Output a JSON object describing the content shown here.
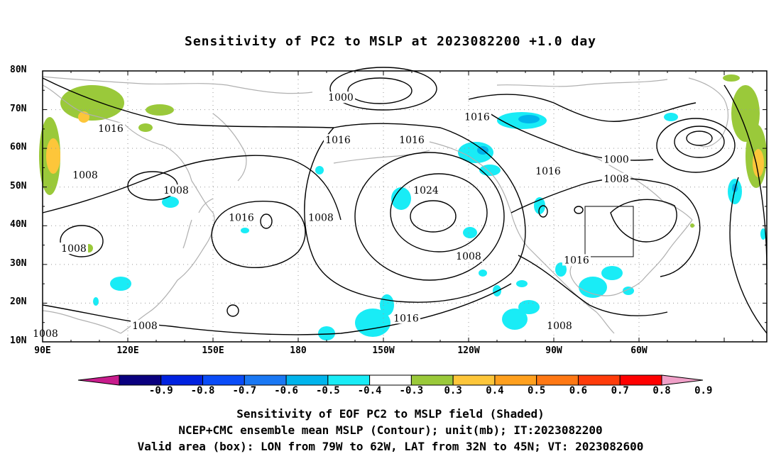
{
  "title": "Sensitivity of PC2 to MSLP at 2023082200 +1.0 day",
  "map": {
    "lat_labels": [
      "80N",
      "70N",
      "60N",
      "50N",
      "40N",
      "30N",
      "20N",
      "10N"
    ],
    "lon_labels": [
      "90E",
      "120E",
      "150E",
      "180",
      "150W",
      "120W",
      "90W",
      "60W"
    ],
    "contour_labels": [
      {
        "text": "1000",
        "lon": -165,
        "lat": 73
      },
      {
        "text": "1016",
        "lon": -82,
        "lat": 31
      },
      {
        "text": "1016",
        "lon": 114,
        "lat": 65
      },
      {
        "text": "1016",
        "lon": -166,
        "lat": 62
      },
      {
        "text": "1016",
        "lon": -140,
        "lat": 62
      },
      {
        "text": "1016",
        "lon": 160,
        "lat": 42
      },
      {
        "text": "1016",
        "lon": -117,
        "lat": 68
      },
      {
        "text": "1016",
        "lon": -92,
        "lat": 54
      },
      {
        "text": "1016",
        "lon": -142,
        "lat": 16
      },
      {
        "text": "1024",
        "lon": -135,
        "lat": 49
      },
      {
        "text": "1008",
        "lon": 105,
        "lat": 53
      },
      {
        "text": "1008",
        "lon": 137,
        "lat": 49
      },
      {
        "text": "1008",
        "lon": -172,
        "lat": 42
      },
      {
        "text": "1008",
        "lon": -120,
        "lat": 32
      },
      {
        "text": "1008",
        "lon": -88,
        "lat": 14
      },
      {
        "text": "1008",
        "lon": -68,
        "lat": 52
      },
      {
        "text": "1000",
        "lon": -68,
        "lat": 57
      },
      {
        "text": "1008",
        "lon": 91,
        "lat": 12
      },
      {
        "text": "1008",
        "lon": 126,
        "lat": 14
      },
      {
        "text": "1008",
        "lon": 101,
        "lat": 34
      }
    ],
    "valid_box": {
      "lon_min": -79,
      "lon_max": -62,
      "lat_min": 32,
      "lat_max": 45
    }
  },
  "colorbar": {
    "colors": [
      "#0a007f",
      "#0022e0",
      "#0a4cf8",
      "#1a78f4",
      "#00b4ec",
      "#19ecf6",
      "#ffffff",
      "#9ac93a",
      "#fdc63a",
      "#ffa01e",
      "#ff7814",
      "#ff3c0a",
      "#ff0000"
    ],
    "left_arrow_color": "#c81c8c",
    "right_arrow_color": "#f0a0c8",
    "labels": [
      "-0.9",
      "-0.8",
      "-0.7",
      "-0.6",
      "-0.5",
      "-0.4",
      "-0.3",
      "0.3",
      "0.4",
      "0.5",
      "0.6",
      "0.7",
      "0.8",
      "0.9"
    ]
  },
  "captions": [
    "Sensitivity of EOF PC2 to MSLP field (Shaded)",
    "NCEP+CMC ensemble mean MSLP (Contour); unit(mb); IT:2023082200",
    "Valid area (box): LON from 79W to 62W, LAT from 32N to 45N; VT: 2023082600"
  ]
}
